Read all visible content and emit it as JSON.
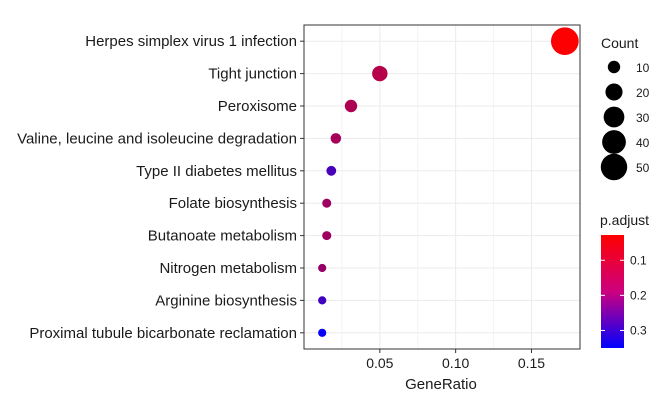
{
  "chart_data": {
    "type": "scatter",
    "xlabel": "GeneRatio",
    "ylabel": "",
    "xlim": [
      0.0,
      0.182
    ],
    "x_ticks": [
      0.05,
      0.1,
      0.15
    ],
    "x_tick_labels": [
      "0.05",
      "0.10",
      "0.15"
    ],
    "grid": true,
    "categories": [
      "Herpes simplex virus 1 infection",
      "Tight junction",
      "Peroxisome",
      "Valine, leucine and isoleucine degradation",
      "Type II diabetes mellitus",
      "Folate biosynthesis",
      "Butanoate metabolism",
      "Nitrogen metabolism",
      "Arginine biosynthesis",
      "Proximal tubule bicarbonate reclamation"
    ],
    "points": [
      {
        "term": "Herpes simplex virus 1 infection",
        "gene_ratio": 0.172,
        "count": 55,
        "p_adjust": 0.03
      },
      {
        "term": "Tight junction",
        "gene_ratio": 0.05,
        "count": 16,
        "p_adjust": 0.12
      },
      {
        "term": "Peroxisome",
        "gene_ratio": 0.031,
        "count": 10,
        "p_adjust": 0.13
      },
      {
        "term": "Valine, leucine and isoleucine degradation",
        "gene_ratio": 0.021,
        "count": 7,
        "p_adjust": 0.14
      },
      {
        "term": "Type II diabetes mellitus",
        "gene_ratio": 0.018,
        "count": 6,
        "p_adjust": 0.26
      },
      {
        "term": "Folate biosynthesis",
        "gene_ratio": 0.015,
        "count": 5,
        "p_adjust": 0.15
      },
      {
        "term": "Butanoate metabolism",
        "gene_ratio": 0.015,
        "count": 5,
        "p_adjust": 0.15
      },
      {
        "term": "Nitrogen metabolism",
        "gene_ratio": 0.012,
        "count": 4,
        "p_adjust": 0.16
      },
      {
        "term": "Arginine biosynthesis",
        "gene_ratio": 0.012,
        "count": 4,
        "p_adjust": 0.27
      },
      {
        "term": "Proximal tubule bicarbonate reclamation",
        "gene_ratio": 0.012,
        "count": 4,
        "p_adjust": 0.34
      }
    ],
    "legend_size": {
      "title": "Count",
      "values": [
        10,
        20,
        30,
        40,
        50
      ],
      "labels": [
        "10",
        "20",
        "30",
        "40",
        "50"
      ],
      "color": "#000000"
    },
    "legend_color": {
      "title": "p.adjust",
      "range": [
        0.028,
        0.35
      ],
      "ticks": [
        0.1,
        0.2,
        0.3
      ],
      "tick_labels": [
        "0.1",
        "0.2",
        "0.3"
      ],
      "low_color": "#ff0000",
      "high_color": "#0000ff"
    },
    "legend_position": "right"
  }
}
